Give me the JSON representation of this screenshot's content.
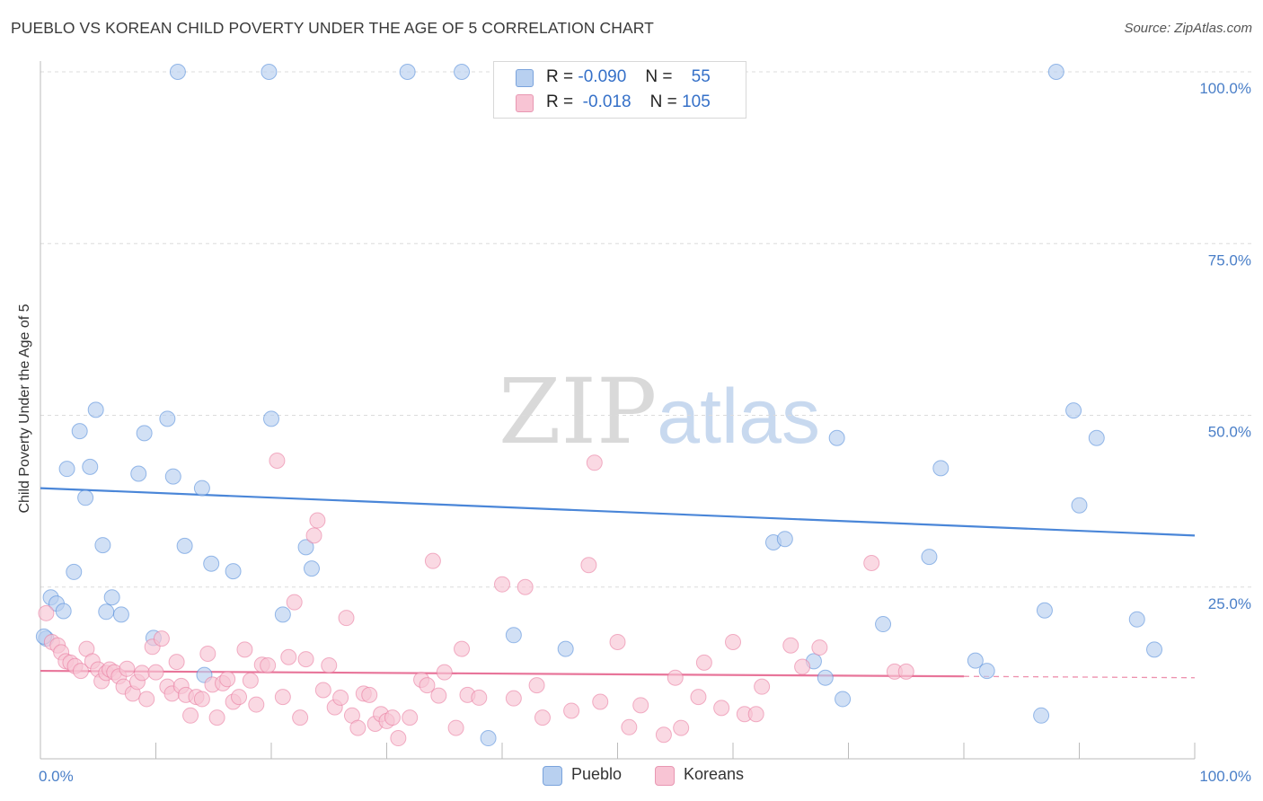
{
  "header": {
    "title": "PUEBLO VS KOREAN CHILD POVERTY UNDER THE AGE OF 5 CORRELATION CHART",
    "source": "Source: ZipAtlas.com"
  },
  "watermark": {
    "zip": "ZIP",
    "atlas": "atlas"
  },
  "legend": {
    "rows": [
      {
        "r_label": "R =",
        "r_value": "-0.090",
        "n_label": "N =",
        "n_value": "55",
        "color": "#b8d0f0"
      },
      {
        "r_label": "R =",
        "r_value": "-0.018",
        "n_label": "N =",
        "n_value": "105",
        "color": "#f8c4d4"
      }
    ]
  },
  "bottom_legend": [
    {
      "label": "Pueblo",
      "color": "#b8d0f0"
    },
    {
      "label": "Koreans",
      "color": "#f8c4d4"
    }
  ],
  "chart_data": {
    "type": "scatter",
    "title": "PUEBLO VS KOREAN CHILD POVERTY UNDER THE AGE OF 5 CORRELATION CHART",
    "xlabel": "",
    "ylabel": "Child Poverty Under the Age of 5",
    "xlim": [
      0,
      100
    ],
    "ylim": [
      0,
      100
    ],
    "x_tick_labels": [
      "0.0%",
      "100.0%"
    ],
    "y_ticks": [
      25,
      50,
      75,
      100
    ],
    "y_tick_labels": [
      "25.0%",
      "50.0%",
      "75.0%",
      "100.0%"
    ],
    "grid": true,
    "series": [
      {
        "name": "Pueblo",
        "color": "#4a86d8",
        "fill": "#b8d0f0",
        "trend": {
          "x": [
            0,
            100
          ],
          "y": [
            39.4,
            32.5
          ]
        },
        "points": [
          [
            0.5,
            17.5
          ],
          [
            0.9,
            23.5
          ],
          [
            1.4,
            22.6
          ],
          [
            2.0,
            21.5
          ],
          [
            2.3,
            42.2
          ],
          [
            2.9,
            27.2
          ],
          [
            3.4,
            47.7
          ],
          [
            3.9,
            38.0
          ],
          [
            4.3,
            42.5
          ],
          [
            4.8,
            50.8
          ],
          [
            5.4,
            31.1
          ],
          [
            5.7,
            21.4
          ],
          [
            6.2,
            23.5
          ],
          [
            7.0,
            21.0
          ],
          [
            8.5,
            41.5
          ],
          [
            9.0,
            47.4
          ],
          [
            9.8,
            17.6
          ],
          [
            11.0,
            49.5
          ],
          [
            11.5,
            41.1
          ],
          [
            11.9,
            100
          ],
          [
            12.5,
            31.0
          ],
          [
            14.0,
            39.4
          ],
          [
            14.2,
            12.2
          ],
          [
            14.8,
            28.4
          ],
          [
            16.7,
            27.3
          ],
          [
            19.8,
            100
          ],
          [
            20.0,
            49.5
          ],
          [
            21.0,
            21.0
          ],
          [
            23.0,
            30.8
          ],
          [
            23.5,
            27.7
          ],
          [
            31.8,
            100
          ],
          [
            36.5,
            100
          ],
          [
            38.8,
            3.0
          ],
          [
            41.0,
            18.0
          ],
          [
            45.5,
            16.0
          ],
          [
            63.5,
            31.5
          ],
          [
            64.5,
            32.0
          ],
          [
            67.0,
            14.2
          ],
          [
            68.0,
            11.8
          ],
          [
            69.0,
            46.7
          ],
          [
            69.5,
            8.7
          ],
          [
            73.0,
            19.6
          ],
          [
            77.0,
            29.4
          ],
          [
            78.0,
            42.3
          ],
          [
            81.0,
            14.3
          ],
          [
            82.0,
            12.8
          ],
          [
            86.7,
            6.3
          ],
          [
            87.0,
            21.6
          ],
          [
            88.0,
            100
          ],
          [
            89.5,
            50.7
          ],
          [
            90.0,
            36.9
          ],
          [
            91.5,
            46.7
          ],
          [
            95.0,
            20.3
          ],
          [
            96.5,
            15.9
          ],
          [
            0.3,
            17.8
          ]
        ]
      },
      {
        "name": "Koreans",
        "color": "#e8759a",
        "fill": "#f8c4d4",
        "trend": {
          "x": [
            0,
            80
          ],
          "y": [
            12.8,
            12.0
          ]
        },
        "trend_dashed": {
          "x": [
            80,
            100
          ],
          "y": [
            12.0,
            11.8
          ]
        },
        "points": [
          [
            0.5,
            21.2
          ],
          [
            1.0,
            17.0
          ],
          [
            1.5,
            16.5
          ],
          [
            1.8,
            15.5
          ],
          [
            2.2,
            14.2
          ],
          [
            2.6,
            14.0
          ],
          [
            3.0,
            13.5
          ],
          [
            3.5,
            12.8
          ],
          [
            4.0,
            16.0
          ],
          [
            4.5,
            14.2
          ],
          [
            5.0,
            13.0
          ],
          [
            5.3,
            11.3
          ],
          [
            5.7,
            12.5
          ],
          [
            6.0,
            13.0
          ],
          [
            6.4,
            12.6
          ],
          [
            6.8,
            12.0
          ],
          [
            7.2,
            10.5
          ],
          [
            7.5,
            13.1
          ],
          [
            8.0,
            9.5
          ],
          [
            8.4,
            11.2
          ],
          [
            8.8,
            12.5
          ],
          [
            9.2,
            8.7
          ],
          [
            9.7,
            16.3
          ],
          [
            10.0,
            12.6
          ],
          [
            10.5,
            17.5
          ],
          [
            11.0,
            10.5
          ],
          [
            11.4,
            9.5
          ],
          [
            11.8,
            14.1
          ],
          [
            12.2,
            10.6
          ],
          [
            12.6,
            9.3
          ],
          [
            13.0,
            6.3
          ],
          [
            13.5,
            9.0
          ],
          [
            14.0,
            8.7
          ],
          [
            14.5,
            15.3
          ],
          [
            14.9,
            10.8
          ],
          [
            15.3,
            6.0
          ],
          [
            15.8,
            11.0
          ],
          [
            16.2,
            11.6
          ],
          [
            16.7,
            8.3
          ],
          [
            17.2,
            9.0
          ],
          [
            17.7,
            15.9
          ],
          [
            18.2,
            11.4
          ],
          [
            18.7,
            7.9
          ],
          [
            19.2,
            13.7
          ],
          [
            19.7,
            13.6
          ],
          [
            20.5,
            43.4
          ],
          [
            21.0,
            9.0
          ],
          [
            21.5,
            14.8
          ],
          [
            22.0,
            22.8
          ],
          [
            22.5,
            6.0
          ],
          [
            23.0,
            14.5
          ],
          [
            23.7,
            32.5
          ],
          [
            24.0,
            34.7
          ],
          [
            24.5,
            10.0
          ],
          [
            25.0,
            13.6
          ],
          [
            25.5,
            7.5
          ],
          [
            26.0,
            8.9
          ],
          [
            26.5,
            20.5
          ],
          [
            27.0,
            6.3
          ],
          [
            27.5,
            4.5
          ],
          [
            28.0,
            9.5
          ],
          [
            28.5,
            9.3
          ],
          [
            29.0,
            5.1
          ],
          [
            29.5,
            6.5
          ],
          [
            30.0,
            5.5
          ],
          [
            30.5,
            6.0
          ],
          [
            31.0,
            3.0
          ],
          [
            32.0,
            6.0
          ],
          [
            33.0,
            11.5
          ],
          [
            33.5,
            10.7
          ],
          [
            34.0,
            28.8
          ],
          [
            34.5,
            9.2
          ],
          [
            35.0,
            12.6
          ],
          [
            36.0,
            4.5
          ],
          [
            36.5,
            16.0
          ],
          [
            37.0,
            9.3
          ],
          [
            38.0,
            8.9
          ],
          [
            40.0,
            25.4
          ],
          [
            41.0,
            8.8
          ],
          [
            42.0,
            25.0
          ],
          [
            43.0,
            10.7
          ],
          [
            43.5,
            6.0
          ],
          [
            46.0,
            7.0
          ],
          [
            47.5,
            28.2
          ],
          [
            48.0,
            43.1
          ],
          [
            48.5,
            8.3
          ],
          [
            50.0,
            17.0
          ],
          [
            51.0,
            4.6
          ],
          [
            52.0,
            7.8
          ],
          [
            54.0,
            3.5
          ],
          [
            55.0,
            11.8
          ],
          [
            55.5,
            4.5
          ],
          [
            57.0,
            9.0
          ],
          [
            57.5,
            14.0
          ],
          [
            59.0,
            7.4
          ],
          [
            60.0,
            17.0
          ],
          [
            61.0,
            6.5
          ],
          [
            62.0,
            6.5
          ],
          [
            62.5,
            10.5
          ],
          [
            65.0,
            16.5
          ],
          [
            66.0,
            13.4
          ],
          [
            67.5,
            16.2
          ],
          [
            72.0,
            28.5
          ],
          [
            74.0,
            12.7
          ],
          [
            75.0,
            12.7
          ]
        ]
      }
    ]
  }
}
